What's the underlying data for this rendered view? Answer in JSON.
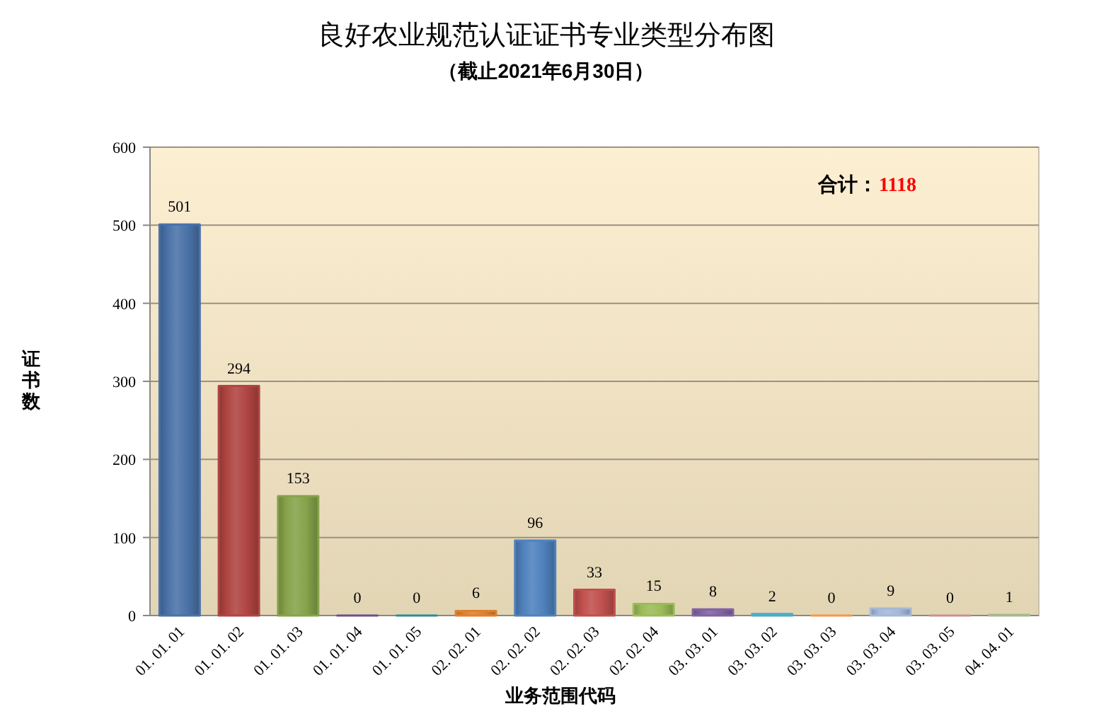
{
  "chart_data": {
    "type": "bar",
    "title": "良好农业规范认证证书专业类型分布图",
    "subtitle": "（截止2021年6月30日）",
    "xlabel": "业务范围代码",
    "ylabel": "证书数",
    "annotations": [
      "合计：",
      "1118"
    ],
    "categories": [
      "01. 01. 01",
      "01. 01. 02",
      "01. 01. 03",
      "01. 01. 04",
      "01. 01. 05",
      "02. 02. 01",
      "02. 02. 02",
      "02. 02. 03",
      "02. 02. 04",
      "03. 03. 01",
      "03. 03. 02",
      "03. 03. 03",
      "03. 03. 04",
      "03. 03. 05",
      "04. 04. 01"
    ],
    "values": [
      501,
      294,
      153,
      0,
      0,
      6,
      96,
      33,
      15,
      8,
      2,
      0,
      9,
      0,
      1
    ],
    "colors": [
      "#4a72a8",
      "#b04542",
      "#86a34a",
      "#6a4f8a",
      "#2f8a9e",
      "#e08030",
      "#4f81bd",
      "#c0504d",
      "#9bbb59",
      "#8064a2",
      "#4bacc6",
      "#f79646",
      "#a5b8d8",
      "#c89090",
      "#a8b890"
    ],
    "ylim": [
      0,
      600
    ],
    "yticks": [
      0,
      100,
      200,
      300,
      400,
      500,
      600
    ],
    "grid": "y",
    "data_labels": true
  }
}
